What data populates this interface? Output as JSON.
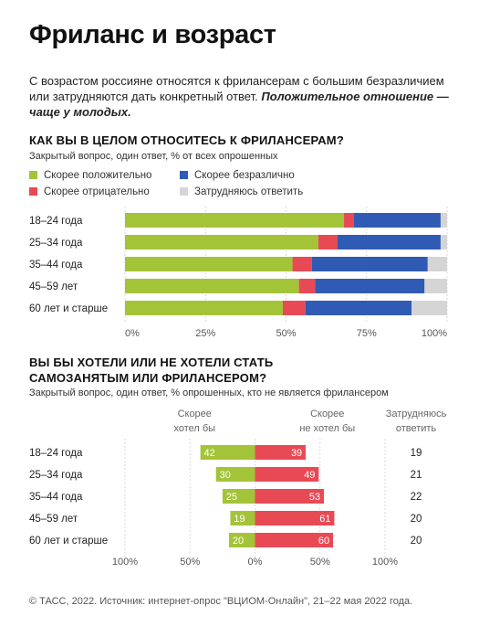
{
  "title": "Фриланс и возраст",
  "intro": {
    "text": "С возрастом россияне относятся к фрилансерам с большим безразличием или затрудняются дать конкретный ответ. ",
    "emphasis": "Положительное отношение — чаще у молодых."
  },
  "colors": {
    "positive": "#a3c439",
    "negative": "#e84a55",
    "indifferent": "#2f5bb5",
    "undecided": "#d5d5d5"
  },
  "chart_data": [
    {
      "type": "bar",
      "stacked": true,
      "orientation": "horizontal",
      "title": "КАК ВЫ В ЦЕЛОМ ОТНОСИТЕСЬ К ФРИЛАНСЕРАМ?",
      "subtitle": "Закрытый вопрос, один ответ, % от всех опрошенных",
      "categories": [
        "18–24 года",
        "25–34 года",
        "35–44 года",
        "45–59 лет",
        "60 лет и старше"
      ],
      "series": [
        {
          "name": "Скорее положительно",
          "color": "#a3c439",
          "values": [
            68,
            60,
            52,
            54,
            49
          ]
        },
        {
          "name": "Скорее отрицательно",
          "color": "#e84a55",
          "values": [
            3,
            6,
            6,
            5,
            7
          ]
        },
        {
          "name": "Скорее безразлично",
          "color": "#2f5bb5",
          "values": [
            27,
            32,
            36,
            34,
            33
          ]
        },
        {
          "name": "Затрудняюсь ответить",
          "color": "#d5d5d5",
          "values": [
            2,
            2,
            6,
            7,
            11
          ]
        }
      ],
      "xlim": [
        0,
        100
      ],
      "xticks": [
        "0%",
        "25%",
        "50%",
        "75%",
        "100%"
      ],
      "legend": "top",
      "grid": true
    },
    {
      "type": "bar",
      "orientation": "horizontal",
      "diverging": true,
      "title": "ВЫ БЫ ХОТЕЛИ ИЛИ НЕ ХОТЕЛИ СТАТЬ САМОЗАНЯТЫМ ИЛИ ФРИЛАНСЕРОМ?",
      "title_lines": [
        "ВЫ БЫ ХОТЕЛИ ИЛИ НЕ ХОТЕЛИ СТАТЬ",
        "САМОЗАНЯТЫМ ИЛИ ФРИЛАНСЕРОМ?"
      ],
      "subtitle": "Закрытый вопрос, один ответ, % опрошенных, кто не является фрилансером",
      "categories": [
        "18–24 года",
        "25–34 года",
        "35–44 года",
        "45–59 лет",
        "60 лет и старше"
      ],
      "series": [
        {
          "name": "Скорее хотел бы",
          "name_lines": [
            "Скорее",
            "хотел бы"
          ],
          "color": "#a3c439",
          "values": [
            42,
            30,
            25,
            19,
            20
          ]
        },
        {
          "name": "Скорее не хотел бы",
          "name_lines": [
            "Скорее",
            "не хотел бы"
          ],
          "color": "#e84a55",
          "values": [
            39,
            49,
            53,
            61,
            60
          ]
        },
        {
          "name": "Затрудняюсь ответить",
          "name_lines": [
            "Затрудняюсь",
            "ответить"
          ],
          "values": [
            19,
            21,
            22,
            20,
            20
          ]
        }
      ],
      "xlim": [
        -100,
        100
      ],
      "xticks": [
        "100%",
        "50%",
        "0%",
        "50%",
        "100%"
      ],
      "grid": true
    }
  ],
  "footer": "© ТАСС, 2022. Источник: интернет-опрос \"ВЦИОМ-Онлайн\", 21–22 мая 2022 года."
}
